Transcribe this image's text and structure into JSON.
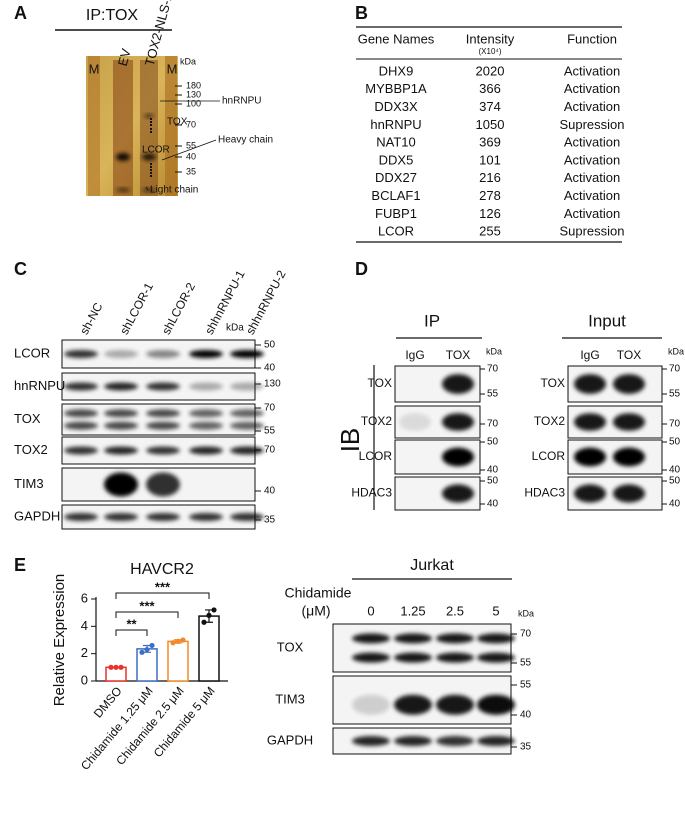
{
  "panels": {
    "a": {
      "letter": "A",
      "title": "IP:TOX",
      "lanes": [
        "M",
        "EV",
        "TOX2-NLS-HA",
        "M"
      ],
      "kda": "kDa",
      "markers": [
        180,
        130,
        100,
        70,
        55,
        40,
        35
      ],
      "annotations": [
        "hnRNPU",
        "TOX",
        "Heavy chain",
        "LCOR",
        "Light chain"
      ]
    },
    "b": {
      "letter": "B",
      "table": {
        "header": [
          "Gene Names",
          "Intensity",
          "Function"
        ],
        "unit": "(X10⁴)",
        "rows": [
          [
            "DHX9",
            2020,
            "Activation"
          ],
          [
            "MYBBP1A",
            366,
            "Activation"
          ],
          [
            "DDX3X",
            374,
            "Activation"
          ],
          [
            "hnRNPU",
            1050,
            "Supression"
          ],
          [
            "NAT10",
            369,
            "Activation"
          ],
          [
            "DDX5",
            101,
            "Activation"
          ],
          [
            "DDX27",
            216,
            "Activation"
          ],
          [
            "BCLAF1",
            278,
            "Activation"
          ],
          [
            "FUBP1",
            126,
            "Activation"
          ],
          [
            "LCOR",
            255,
            "Supression"
          ]
        ]
      }
    },
    "c": {
      "letter": "C",
      "lanes": [
        "sh-NC",
        "shLCOR-1",
        "shLCOR-2",
        "shhnRNPU-1",
        "shhnRNPU-2"
      ],
      "kda": "kDa",
      "blots": [
        {
          "label": "LCOR",
          "markers": [
            50,
            40
          ]
        },
        {
          "label": "hnRNPU",
          "markers": [
            130
          ]
        },
        {
          "label": "TOX",
          "markers": [
            70,
            55
          ]
        },
        {
          "label": "TOX2",
          "markers": [
            70
          ]
        },
        {
          "label": "TIM3",
          "markers": [
            40
          ]
        },
        {
          "label": "GAPDH",
          "markers": [
            35
          ]
        }
      ]
    },
    "d": {
      "letter": "D",
      "ib": "IB",
      "groups": [
        {
          "title": "IP",
          "lanes": [
            "IgG",
            "TOX"
          ],
          "kda": "kDa",
          "blots": [
            {
              "label": "TOX",
              "markers": [
                70,
                55
              ]
            },
            {
              "label": "TOX2",
              "markers": [
                70
              ]
            },
            {
              "label": "LCOR",
              "markers": [
                50,
                40
              ]
            },
            {
              "label": "HDAC3",
              "markers": [
                50,
                40
              ]
            }
          ]
        },
        {
          "title": "Input",
          "lanes": [
            "IgG",
            "TOX"
          ],
          "kda": "kDa",
          "blots": [
            {
              "label": "TOX",
              "markers": [
                70,
                55
              ]
            },
            {
              "label": "TOX2",
              "markers": [
                70
              ]
            },
            {
              "label": "LCOR",
              "markers": [
                50,
                40
              ]
            },
            {
              "label": "HDAC3",
              "markers": [
                50,
                40
              ]
            }
          ]
        }
      ]
    },
    "e": {
      "letter": "E",
      "blot": {
        "cell": "Jurkat",
        "treatment": "Chidamide",
        "unit": "(μM)",
        "lanes": [
          0,
          1.25,
          2.5,
          5
        ],
        "kda": "kDa",
        "blots": [
          {
            "label": "TOX",
            "markers": [
              70,
              55
            ]
          },
          {
            "label": "TIM3",
            "markers": [
              55,
              40
            ]
          },
          {
            "label": "GAPDH",
            "markers": [
              35
            ]
          }
        ]
      }
    }
  },
  "chart_data": {
    "type": "bar",
    "title": "HAVCR2",
    "y_label": "Relative Expression",
    "categories": [
      "DMSO",
      "Chidamide 1.25 μM",
      "Chidamide 2.5 μM",
      "Chidamide 5 μM"
    ],
    "values": [
      1.0,
      2.35,
      2.9,
      4.75
    ],
    "errors": [
      0.02,
      0.25,
      0.12,
      0.45
    ],
    "points": [
      [
        1.0,
        1.0,
        1.0
      ],
      [
        2.1,
        2.3,
        2.6
      ],
      [
        2.8,
        2.9,
        3.0
      ],
      [
        4.3,
        4.8,
        5.2
      ]
    ],
    "colors": [
      "#e8322b",
      "#3a6fc4",
      "#f08a2a",
      "#111111"
    ],
    "significance": [
      "**",
      "***",
      "***"
    ],
    "ylim": [
      0,
      6
    ],
    "yticks": [
      0,
      2,
      4,
      6
    ]
  }
}
